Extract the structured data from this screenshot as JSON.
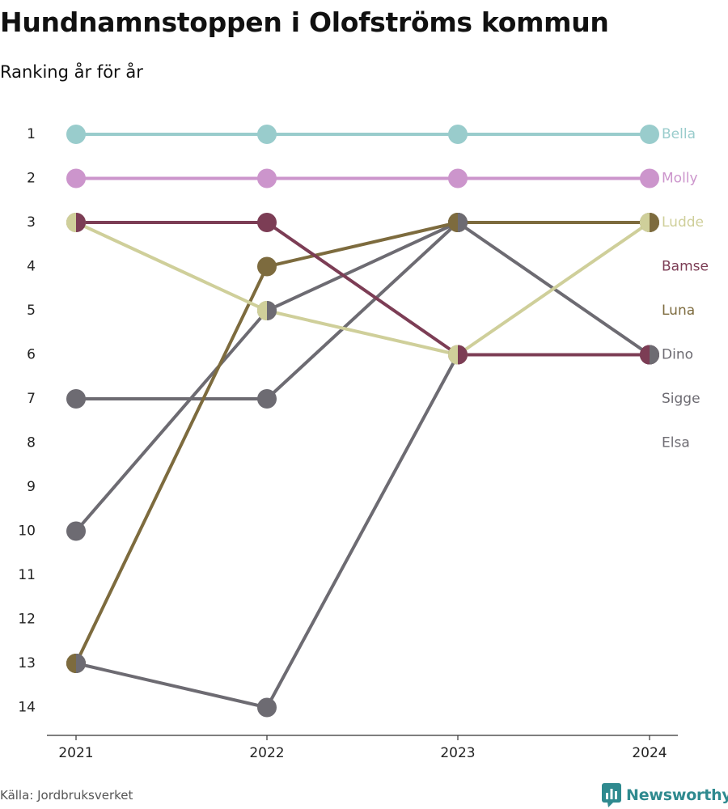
{
  "title": "Hundnamnstoppen i Olofströms kommun",
  "subtitle": "Ranking år för år",
  "source": "Källa: Jordbruksverket",
  "brand": "Newsworthy",
  "chart_data": {
    "type": "line",
    "subtype": "bump",
    "x": [
      "2021",
      "2022",
      "2023",
      "2024"
    ],
    "y_ticks": [
      "1",
      "2",
      "3",
      "4",
      "5",
      "6",
      "7",
      "8",
      "9",
      "10",
      "11",
      "12",
      "13",
      "14"
    ],
    "y_range": [
      1,
      14
    ],
    "y_reversed": true,
    "grid": false,
    "legend": "right-end labels",
    "series": [
      {
        "name": "Elsa",
        "color": "#6d6b72",
        "values": [
          13,
          14,
          6,
          6
        ]
      },
      {
        "name": "Sigge",
        "color": "#6d6b72",
        "values": [
          7,
          7,
          3,
          6
        ]
      },
      {
        "name": "Dino",
        "color": "#6d6b72",
        "values": [
          10,
          5,
          3,
          3
        ]
      },
      {
        "name": "Luna",
        "color": "#7d6b3e",
        "values": [
          13,
          4,
          3,
          3
        ]
      },
      {
        "name": "Bamse",
        "color": "#7c3d55",
        "values": [
          3,
          3,
          6,
          6
        ]
      },
      {
        "name": "Ludde",
        "color": "#cfcf9a",
        "values": [
          3,
          5,
          6,
          3
        ]
      },
      {
        "name": "Molly",
        "color": "#cc95cc",
        "values": [
          2,
          2,
          2,
          2
        ]
      },
      {
        "name": "Bella",
        "color": "#99cccc",
        "values": [
          1,
          1,
          1,
          1
        ]
      }
    ],
    "end_labels": [
      {
        "name": "Bella",
        "color": "#99cccc"
      },
      {
        "name": "Molly",
        "color": "#cc95cc"
      },
      {
        "name": "Ludde",
        "color": "#cfcf9a"
      },
      {
        "name": "Bamse",
        "color": "#7c3d55"
      },
      {
        "name": "Luna",
        "color": "#7d6b3e"
      },
      {
        "name": "Dino",
        "color": "#6d6b72"
      },
      {
        "name": "Sigge",
        "color": "#6d6b72"
      },
      {
        "name": "Elsa",
        "color": "#6d6b72"
      }
    ]
  }
}
